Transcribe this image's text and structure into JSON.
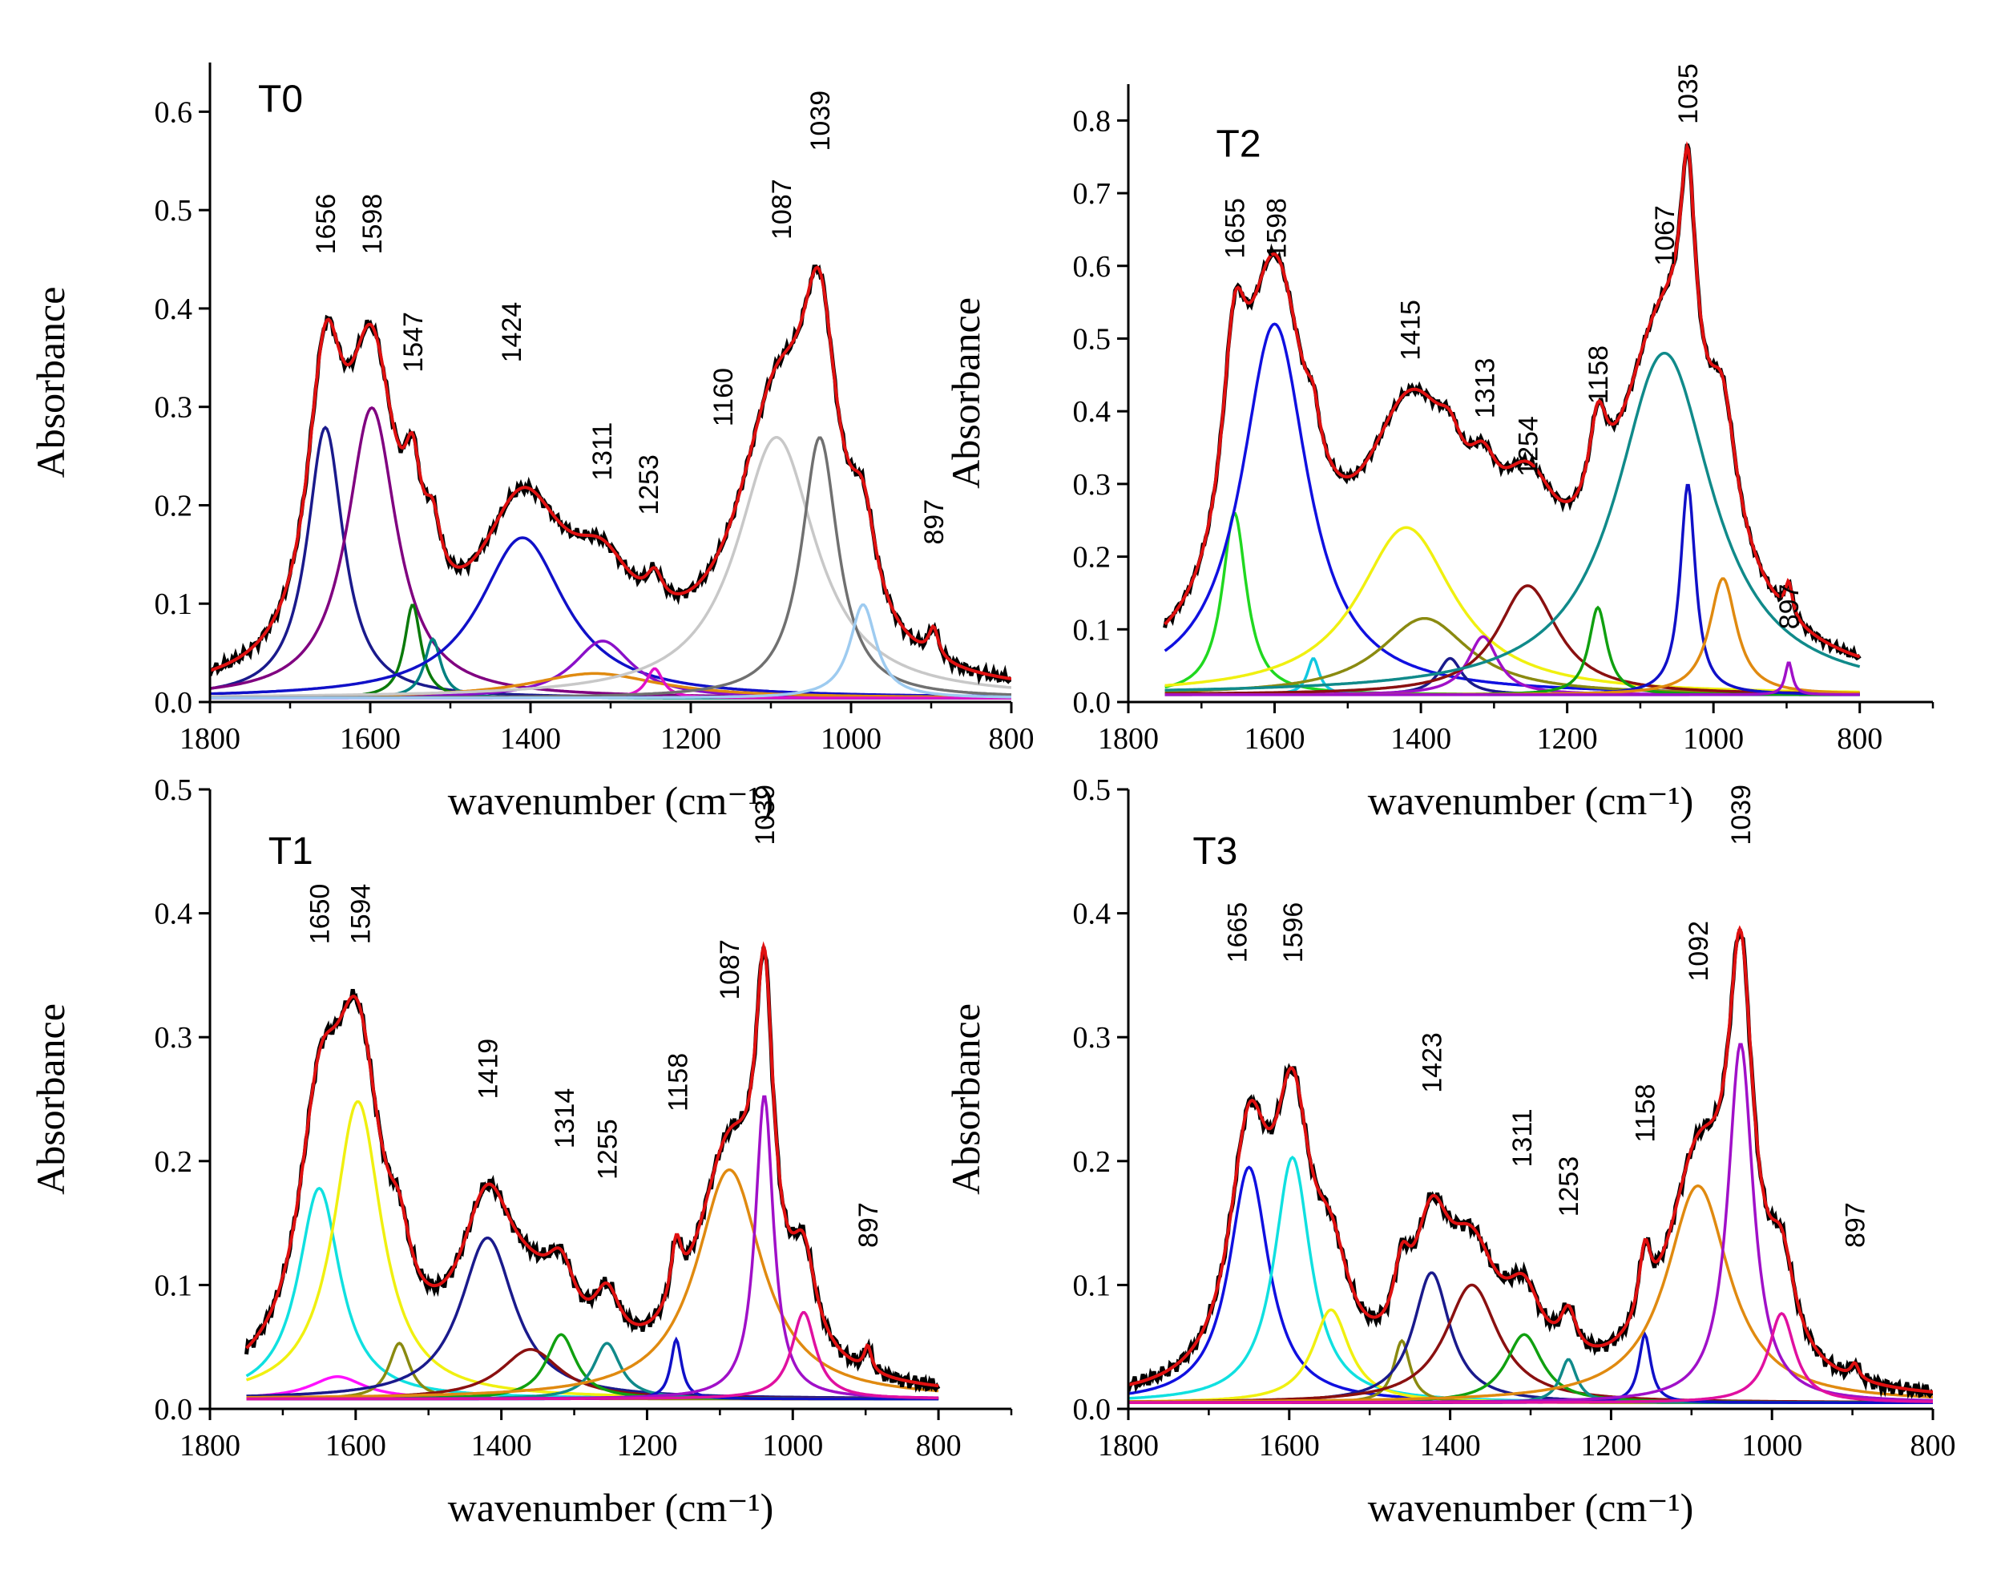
{
  "chart_data": [
    {
      "type": "line",
      "panel": "T0",
      "xlabel": "wavenumber (cm⁻¹)",
      "ylabel": "Absorbance",
      "xlim": [
        1800,
        800
      ],
      "ylim": [
        0,
        0.65
      ],
      "xticks": [
        "1800",
        "1600",
        "1400",
        "1200",
        "1000",
        "800"
      ],
      "yticks": [
        "0.0",
        "0.1",
        "0.2",
        "0.3",
        "0.4",
        "0.5",
        "0.6"
      ],
      "peak_labels": [
        "1656",
        "1598",
        "1547",
        "1424",
        "1311",
        "1253",
        "1160",
        "1087",
        "1039",
        "897"
      ],
      "baseline": 0.004,
      "fit_range": [
        1800,
        800
      ],
      "components": [
        {
          "center": 1656,
          "height": 0.275,
          "fwhm": 55,
          "color": "#1a1a8c"
        },
        {
          "center": 1598,
          "height": 0.295,
          "fwhm": 75,
          "color": "#800080"
        },
        {
          "center": 1547,
          "height": 0.095,
          "fwhm": 25,
          "color": "#0a7a0a"
        },
        {
          "center": 1522,
          "height": 0.06,
          "fwhm": 25,
          "color": "#008080"
        },
        {
          "center": 1410,
          "height": 0.163,
          "fwhm": 130,
          "color": "#1010c8"
        },
        {
          "center": 1310,
          "height": 0.058,
          "fwhm": 90,
          "color": "#8a10c8"
        },
        {
          "center": 1320,
          "height": 0.025,
          "fwhm": 200,
          "color": "#e08a10"
        },
        {
          "center": 1245,
          "height": 0.03,
          "fwhm": 25,
          "color": "#e010c8"
        },
        {
          "center": 1093,
          "height": 0.265,
          "fwhm": 120,
          "color": "#c8c8c8"
        },
        {
          "center": 1039,
          "height": 0.265,
          "fwhm": 55,
          "color": "#707070"
        },
        {
          "center": 985,
          "height": 0.095,
          "fwhm": 40,
          "color": "#9ecbf0"
        }
      ],
      "extra_peaks": [
        {
          "center": 897,
          "height": 0.03,
          "fwhm": 15
        }
      ]
    },
    {
      "type": "line",
      "panel": "T2",
      "xlabel": "wavenumber (cm⁻¹)",
      "ylabel": "Absorbance",
      "xlim": [
        1800,
        700
      ],
      "ylim": [
        0,
        0.85
      ],
      "xticks": [
        "1800",
        "1600",
        "1400",
        "1200",
        "1000",
        "800"
      ],
      "yticks": [
        "0.0",
        "0.1",
        "0.2",
        "0.3",
        "0.4",
        "0.5",
        "0.6",
        "0.7",
        "0.8"
      ],
      "peak_labels": [
        "1655",
        "1598",
        "1415",
        "1313",
        "1254",
        "1158",
        "1067",
        "1035",
        "897"
      ],
      "baseline": 0.01,
      "fit_range": [
        1750,
        800
      ],
      "components": [
        {
          "center": 1655,
          "height": 0.25,
          "fwhm": 40,
          "color": "#20d820"
        },
        {
          "center": 1600,
          "height": 0.51,
          "fwhm": 110,
          "color": "#1010e0"
        },
        {
          "center": 1547,
          "height": 0.05,
          "fwhm": 20,
          "color": "#10c8e0"
        },
        {
          "center": 1420,
          "height": 0.23,
          "fwhm": 160,
          "color": "#f0f010"
        },
        {
          "center": 1395,
          "height": 0.105,
          "fwhm": 150,
          "color": "#8a8a10"
        },
        {
          "center": 1360,
          "height": 0.05,
          "fwhm": 40,
          "color": "#1a1a8c"
        },
        {
          "center": 1315,
          "height": 0.08,
          "fwhm": 50,
          "color": "#a010c8"
        },
        {
          "center": 1254,
          "height": 0.15,
          "fwhm": 100,
          "color": "#8a1010"
        },
        {
          "center": 1158,
          "height": 0.12,
          "fwhm": 30,
          "color": "#10a010"
        },
        {
          "center": 1067,
          "height": 0.47,
          "fwhm": 160,
          "color": "#108a8a"
        },
        {
          "center": 1035,
          "height": 0.29,
          "fwhm": 25,
          "color": "#1010c8"
        },
        {
          "center": 987,
          "height": 0.16,
          "fwhm": 45,
          "color": "#e08a10"
        },
        {
          "center": 897,
          "height": 0.045,
          "fwhm": 12,
          "color": "#a010c8"
        }
      ],
      "extra_peaks": []
    },
    {
      "type": "line",
      "panel": "T1",
      "xlabel": "wavenumber (cm⁻¹)",
      "ylabel": "Absorbance",
      "xlim": [
        1800,
        700
      ],
      "ylim": [
        0,
        0.5
      ],
      "xticks": [
        "1800",
        "1600",
        "1400",
        "1200",
        "1000",
        "800"
      ],
      "yticks": [
        "0.0",
        "0.1",
        "0.2",
        "0.3",
        "0.4",
        "0.5"
      ],
      "peak_labels": [
        "1650",
        "1594",
        "1419",
        "1314",
        "1255",
        "1158",
        "1087",
        "1039",
        "897"
      ],
      "baseline": 0.008,
      "fit_range": [
        1750,
        800
      ],
      "components": [
        {
          "center": 1650,
          "height": 0.17,
          "fwhm": 70,
          "color": "#10e0e0"
        },
        {
          "center": 1625,
          "height": 0.018,
          "fwhm": 90,
          "color": "#ff10ff"
        },
        {
          "center": 1597,
          "height": 0.24,
          "fwhm": 80,
          "color": "#f0f010"
        },
        {
          "center": 1540,
          "height": 0.045,
          "fwhm": 35,
          "color": "#8a8a10"
        },
        {
          "center": 1419,
          "height": 0.13,
          "fwhm": 90,
          "color": "#1a1a8c"
        },
        {
          "center": 1360,
          "height": 0.04,
          "fwhm": 100,
          "color": "#8a1010"
        },
        {
          "center": 1318,
          "height": 0.052,
          "fwhm": 50,
          "color": "#10a010"
        },
        {
          "center": 1255,
          "height": 0.045,
          "fwhm": 45,
          "color": "#108a8a"
        },
        {
          "center": 1160,
          "height": 0.048,
          "fwhm": 18,
          "color": "#1010c8"
        },
        {
          "center": 1087,
          "height": 0.185,
          "fwhm": 110,
          "color": "#e08a10"
        },
        {
          "center": 1039,
          "height": 0.245,
          "fwhm": 30,
          "color": "#a010c8"
        },
        {
          "center": 985,
          "height": 0.07,
          "fwhm": 40,
          "color": "#e010a0"
        }
      ],
      "extra_peaks": [
        {
          "center": 897,
          "height": 0.02,
          "fwhm": 12
        }
      ]
    },
    {
      "type": "line",
      "panel": "T3",
      "xlabel": "wavenumber (cm⁻¹)",
      "ylabel": "Absorbance",
      "xlim": [
        1800,
        800
      ],
      "ylim": [
        0,
        0.5
      ],
      "xticks": [
        "1800",
        "1600",
        "1400",
        "1200",
        "1000",
        "800"
      ],
      "yticks": [
        "0.0",
        "0.1",
        "0.2",
        "0.3",
        "0.4",
        "0.5"
      ],
      "peak_labels": [
        "1665",
        "1596",
        "1423",
        "1311",
        "1253",
        "1158",
        "1092",
        "1039",
        "897"
      ],
      "baseline": 0.005,
      "fit_range": [
        1800,
        800
      ],
      "components": [
        {
          "center": 1650,
          "height": 0.19,
          "fwhm": 60,
          "color": "#1010e0"
        },
        {
          "center": 1596,
          "height": 0.198,
          "fwhm": 55,
          "color": "#10e0e0"
        },
        {
          "center": 1548,
          "height": 0.075,
          "fwhm": 55,
          "color": "#f0f010"
        },
        {
          "center": 1460,
          "height": 0.05,
          "fwhm": 25,
          "color": "#8a8a10"
        },
        {
          "center": 1423,
          "height": 0.105,
          "fwhm": 55,
          "color": "#1a1a8c"
        },
        {
          "center": 1373,
          "height": 0.095,
          "fwhm": 80,
          "color": "#8a1010"
        },
        {
          "center": 1308,
          "height": 0.055,
          "fwhm": 55,
          "color": "#10a010"
        },
        {
          "center": 1253,
          "height": 0.035,
          "fwhm": 25,
          "color": "#108a8a"
        },
        {
          "center": 1158,
          "height": 0.055,
          "fwhm": 18,
          "color": "#1010c8"
        },
        {
          "center": 1092,
          "height": 0.175,
          "fwhm": 95,
          "color": "#e08a10"
        },
        {
          "center": 1039,
          "height": 0.29,
          "fwhm": 38,
          "color": "#a010c8"
        },
        {
          "center": 988,
          "height": 0.072,
          "fwhm": 40,
          "color": "#e010a0"
        }
      ],
      "extra_peaks": [
        {
          "center": 897,
          "height": 0.012,
          "fwhm": 12
        }
      ]
    }
  ]
}
